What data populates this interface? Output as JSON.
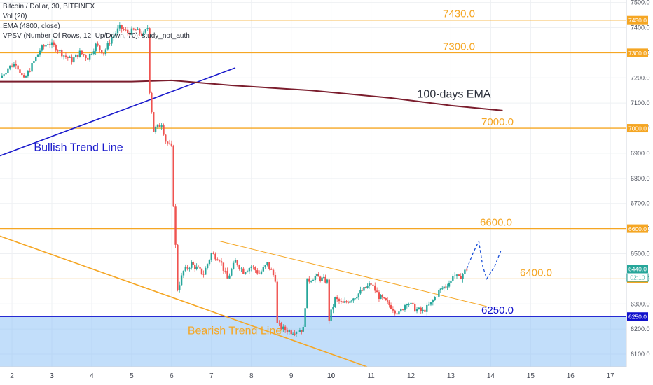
{
  "legend": {
    "symbol_line": "Bitcoin / Dollar, 30, BITFINEX",
    "indicators": [
      "Vol (20)",
      "EMA (4800, close)",
      "VPSV (Number Of Rows, 12, Up/Down, 70): study_not_auth"
    ]
  },
  "chart_data": {
    "type": "candlestick",
    "title": "",
    "x_ticks": [
      "2",
      "3",
      "4",
      "5",
      "6",
      "7",
      "8",
      "9",
      "10",
      "11",
      "12",
      "13",
      "14",
      "15",
      "16",
      "17"
    ],
    "y_ticks": [
      6100,
      6200,
      6300,
      6400,
      6500,
      6600,
      6700,
      6800,
      6900,
      7000,
      7100,
      7200,
      7300,
      7400,
      7500
    ],
    "ylim": [
      6050,
      7510
    ],
    "xlim": [
      1.7,
      17.4
    ],
    "grid": true,
    "price_path": [
      [
        1.7,
        7200
      ],
      [
        1.9,
        7240
      ],
      [
        2.1,
        7260
      ],
      [
        2.3,
        7190
      ],
      [
        2.5,
        7250
      ],
      [
        2.7,
        7310
      ],
      [
        2.9,
        7340
      ],
      [
        3.1,
        7320
      ],
      [
        3.3,
        7290
      ],
      [
        3.5,
        7270
      ],
      [
        3.7,
        7300
      ],
      [
        3.9,
        7280
      ],
      [
        4.1,
        7330
      ],
      [
        4.3,
        7300
      ],
      [
        4.5,
        7360
      ],
      [
        4.7,
        7400
      ],
      [
        4.9,
        7380
      ],
      [
        5.1,
        7390
      ],
      [
        5.3,
        7370
      ],
      [
        5.4,
        7400
      ],
      [
        5.45,
        7150
      ],
      [
        5.55,
        6990
      ],
      [
        5.75,
        7020
      ],
      [
        5.85,
        6950
      ],
      [
        6.0,
        6920
      ],
      [
        6.05,
        6700
      ],
      [
        6.15,
        6360
      ],
      [
        6.3,
        6430
      ],
      [
        6.5,
        6460
      ],
      [
        6.8,
        6420
      ],
      [
        7.0,
        6500
      ],
      [
        7.2,
        6480
      ],
      [
        7.4,
        6400
      ],
      [
        7.6,
        6470
      ],
      [
        7.8,
        6430
      ],
      [
        8.0,
        6450
      ],
      [
        8.2,
        6420
      ],
      [
        8.4,
        6460
      ],
      [
        8.6,
        6400
      ],
      [
        8.65,
        6220
      ],
      [
        8.8,
        6200
      ],
      [
        9.0,
        6190
      ],
      [
        9.3,
        6200
      ],
      [
        9.4,
        6390
      ],
      [
        9.6,
        6410
      ],
      [
        9.9,
        6390
      ],
      [
        9.95,
        6240
      ],
      [
        10.1,
        6320
      ],
      [
        10.3,
        6300
      ],
      [
        10.6,
        6330
      ],
      [
        11.0,
        6380
      ],
      [
        11.2,
        6330
      ],
      [
        11.5,
        6290
      ],
      [
        11.7,
        6260
      ],
      [
        11.9,
        6310
      ],
      [
        12.1,
        6280
      ],
      [
        12.3,
        6270
      ],
      [
        12.5,
        6300
      ],
      [
        12.7,
        6350
      ],
      [
        13.0,
        6390
      ],
      [
        13.05,
        6420
      ],
      [
        13.2,
        6400
      ],
      [
        13.4,
        6440
      ]
    ],
    "projection_path": [
      [
        13.4,
        6440
      ],
      [
        13.55,
        6500
      ],
      [
        13.7,
        6550
      ],
      [
        13.8,
        6450
      ],
      [
        13.9,
        6400
      ],
      [
        14.1,
        6450
      ],
      [
        14.25,
        6510
      ]
    ],
    "ema_path": [
      [
        1.7,
        7185
      ],
      [
        5.0,
        7185
      ],
      [
        6.0,
        7190
      ],
      [
        7.5,
        7170
      ],
      [
        9.5,
        7150
      ],
      [
        11.5,
        7120
      ],
      [
        13.0,
        7090
      ],
      [
        14.3,
        7070
      ]
    ],
    "ema_label": "100-days EMA",
    "horizontal_levels": [
      {
        "value": 7430,
        "label": "7430.0",
        "color": "#f5a623"
      },
      {
        "value": 7300,
        "label": "7300.0",
        "color": "#f5a623"
      },
      {
        "value": 7000,
        "label": "7000.0",
        "color": "#f5a623"
      },
      {
        "value": 6600,
        "label": "6600.0",
        "color": "#f5a623"
      },
      {
        "value": 6400,
        "label": "6400.0",
        "color": "#f5a623"
      },
      {
        "value": 6250,
        "label": "6250.0",
        "color": "#1010cc"
      }
    ],
    "trend_lines": [
      {
        "name": "Bullish Trend Line",
        "color": "#1a1acc",
        "from": [
          1.7,
          6890
        ],
        "to": [
          7.6,
          7240
        ]
      },
      {
        "name": "Bearish Trend Line",
        "color": "#f5a623",
        "from": [
          1.7,
          6570
        ],
        "to": [
          10.9,
          6050
        ]
      },
      {
        "name": "",
        "color": "#f5a623",
        "from": [
          7.2,
          6550
        ],
        "to": [
          13.9,
          6290
        ]
      }
    ],
    "trend_labels": [
      "Bullish Trend Line",
      "Bearish Trend Line"
    ],
    "price_tags": [
      {
        "value": 7430,
        "label": "7430.0",
        "color": "#f5a623"
      },
      {
        "value": 7300,
        "label": "7300.0",
        "color": "#f5a623"
      },
      {
        "value": 7000,
        "label": "7000.0",
        "color": "#f5a623"
      },
      {
        "value": 6600,
        "label": "6600.0",
        "color": "#f5a623"
      },
      {
        "value": 6440,
        "label": "6440.0",
        "color": "#26a69a"
      },
      {
        "value": 6400,
        "label": "6400.0",
        "color": "#f5a623"
      },
      {
        "value": 6250,
        "label": "6250.0",
        "color": "#1010cc"
      }
    ],
    "countdown": "02:10",
    "colors": {
      "up": "#26a69a",
      "down": "#ef5350",
      "ema": "#7b1d2d",
      "shade": "#90c2f5"
    }
  }
}
